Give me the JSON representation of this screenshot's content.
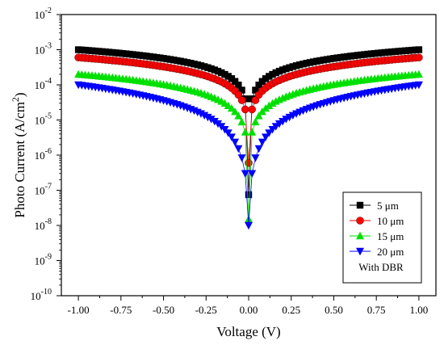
{
  "chart_data": {
    "type": "scatter",
    "xlabel": "Voltage (V)",
    "ylabel_main": "Photo Current (A/cm",
    "ylabel_sup": "2",
    "ylabel_close": ")",
    "xlim": [
      -1.1,
      1.1
    ],
    "ylim_log10": [
      -10,
      -2
    ],
    "log_y": true,
    "x_ticks": [
      -1.0,
      -0.75,
      -0.5,
      -0.25,
      0.0,
      0.25,
      0.5,
      0.75,
      1.0
    ],
    "x_tick_labels": [
      "-1.00",
      "-0.75",
      "-0.50",
      "-0.25",
      "0.00",
      "0.25",
      "0.50",
      "0.75",
      "1.00"
    ],
    "y_tick_exponents": [
      -10,
      -9,
      -8,
      -7,
      -6,
      -5,
      -4,
      -3,
      -2
    ],
    "y_tick_labels": [
      {
        "base": "10",
        "exp": "-10"
      },
      {
        "base": "10",
        "exp": "-9"
      },
      {
        "base": "10",
        "exp": "-8"
      },
      {
        "base": "10",
        "exp": "-7"
      },
      {
        "base": "10",
        "exp": "-6"
      },
      {
        "base": "10",
        "exp": "-5"
      },
      {
        "base": "10",
        "exp": "-4"
      },
      {
        "base": "10",
        "exp": "-3"
      },
      {
        "base": "10",
        "exp": "-2"
      }
    ],
    "grid": false,
    "legend_position": "bottom-right",
    "legend_note": "With DBR",
    "series": [
      {
        "name": "5 μm",
        "marker": "square",
        "color": "#000000",
        "i_at_1V": 0.001,
        "i_near_0": 4e-05,
        "i_zero": 7.5e-08
      },
      {
        "name": "10 μm",
        "marker": "circle",
        "color": "#ff0000",
        "i_at_1V": 0.0006,
        "i_near_0": 2e-05,
        "i_zero": 6e-07
      },
      {
        "name": "15 μm",
        "marker": "triangle-up",
        "color": "#00e000",
        "i_at_1V": 0.0002,
        "i_near_0": 4.5e-06,
        "i_zero": 1.5e-08
      },
      {
        "name": "20 μm",
        "marker": "triangle-down",
        "color": "#0000ff",
        "i_at_1V": 0.0001,
        "i_near_0": 3e-07,
        "i_zero": 1e-08
      }
    ]
  }
}
